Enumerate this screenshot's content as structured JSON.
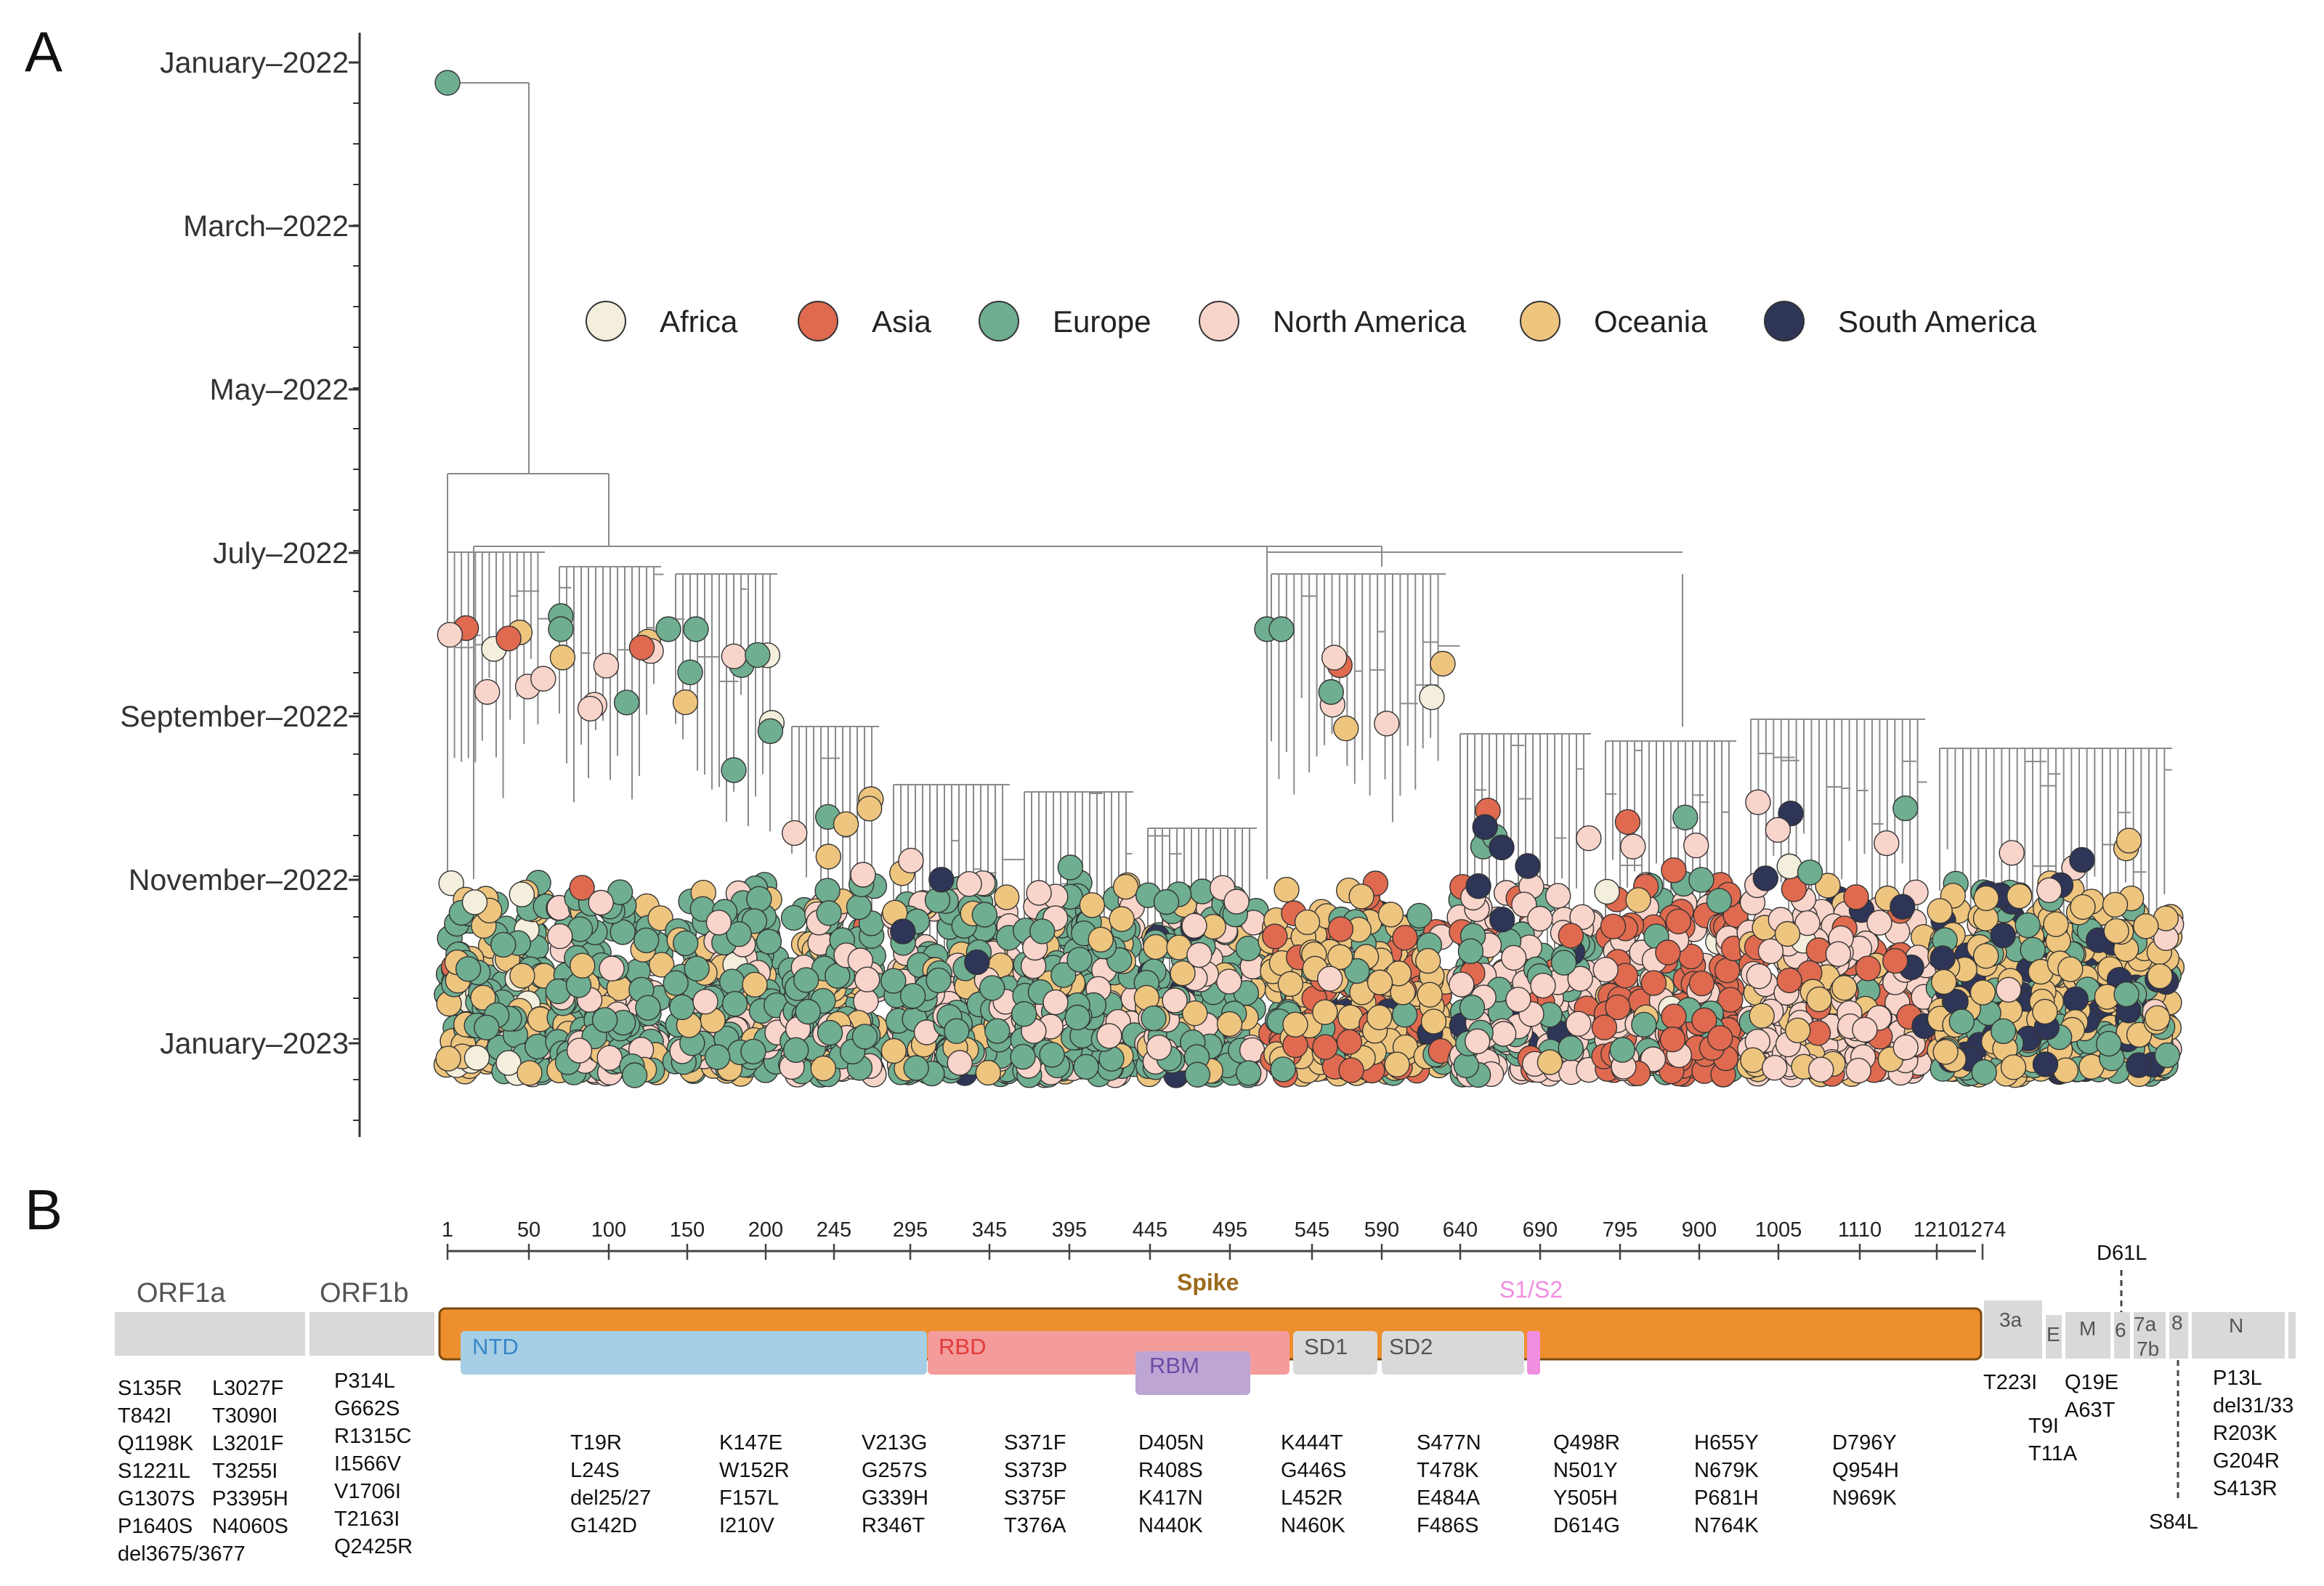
{
  "panel_a_label": "A",
  "panel_b_label": "B",
  "dates": [
    "January–2022",
    "March–2022",
    "May–2022",
    "July–2022",
    "September–2022",
    "November–2022",
    "January–2023"
  ],
  "legend": [
    {
      "label": "Africa",
      "color": "#f3efdc"
    },
    {
      "label": "Asia",
      "color": "#df6a4f"
    },
    {
      "label": "Europe",
      "color": "#6fae90"
    },
    {
      "label": "North America",
      "color": "#f8d4ca"
    },
    {
      "label": "Oceania",
      "color": "#eec57f"
    },
    {
      "label": "South America",
      "color": "#2e3557"
    }
  ],
  "colors": {
    "spike": "#ee8f2e",
    "ntd": "#a6cfe6",
    "rbd": "#f49b9b",
    "rbm": "#bda5d4",
    "sd": "#d9d9d9",
    "s1s2": "#f08ee0",
    "gene": "#d9d9d9"
  },
  "ruler_ticks": [
    "1",
    "50",
    "100",
    "150",
    "200",
    "245",
    "295",
    "345",
    "395",
    "445",
    "495",
    "545",
    "590",
    "640",
    "690",
    "795",
    "900",
    "1005",
    "1110",
    "1210",
    "1274"
  ],
  "genes": {
    "orf1a": "ORF1a",
    "orf1b": "ORF1b",
    "spike": "Spike",
    "s1s2": "S1/S2",
    "ntd": "NTD",
    "rbd": "RBD",
    "rbm": "RBM",
    "sd1": "SD1",
    "sd2": "SD2",
    "g3a": "3a",
    "ge": "E",
    "gm": "M",
    "g6": "6",
    "g7a": "7a",
    "g7b": "7b",
    "g8": "8",
    "gn": "N"
  },
  "mutations": {
    "orf1a_col1": [
      "S135R",
      "T842I",
      "Q1198K",
      "S1221L",
      "G1307S",
      "P1640S",
      "del3675/3677"
    ],
    "orf1a_col2": [
      "L3027F",
      "T3090I",
      "L3201F",
      "T3255I",
      "P3395H",
      "N4060S"
    ],
    "orf1b": [
      "P314L",
      "G662S",
      "R1315C",
      "I1566V",
      "V1706I",
      "T2163I",
      "Q2425R"
    ],
    "spike_groups": [
      [
        "T19R",
        "L24S",
        "del25/27",
        "G142D"
      ],
      [
        "K147E",
        "W152R",
        "F157L",
        "I210V"
      ],
      [
        "V213G",
        "G257S",
        "G339H",
        "R346T"
      ],
      [
        "S371F",
        "S373P",
        "S375F",
        "T376A"
      ],
      [
        "D405N",
        "R408S",
        "K417N",
        "N440K"
      ],
      [
        "K444T",
        "G446S",
        "L452R",
        "N460K"
      ],
      [
        "S477N",
        "T478K",
        "E484A",
        "F486S"
      ],
      [
        "Q498R",
        "N501Y",
        "Y505H",
        "D614G"
      ],
      [
        "H655Y",
        "N679K",
        "P681H",
        "N764K"
      ],
      [
        "D796Y",
        "Q954H",
        "N969K"
      ]
    ],
    "orf3a": [
      "T223I"
    ],
    "e": [
      "T9I",
      "T11A"
    ],
    "m": [
      "Q19E",
      "A63T"
    ],
    "orf6_top": "D61L",
    "orf8_bottom": "S84L",
    "n": [
      "P13L",
      "del31/33",
      "R203K",
      "G204R",
      "S413R"
    ]
  }
}
